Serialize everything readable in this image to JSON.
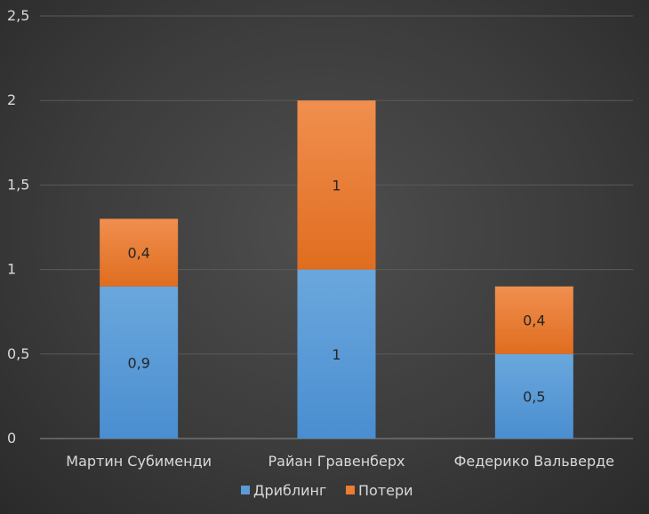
{
  "chart_data": {
    "type": "bar",
    "stacked": true,
    "categories": [
      "Мартин Субименди",
      "Райан Гравенберх",
      "Федерико Вальверде"
    ],
    "series": [
      {
        "name": "Дриблинг",
        "values": [
          0.9,
          1,
          0.5
        ],
        "labels": [
          "0,9",
          "1",
          "0,5"
        ],
        "color": "#5b9bd5"
      },
      {
        "name": "Потери",
        "values": [
          0.4,
          1,
          0.4
        ],
        "labels": [
          "0,4",
          "1",
          "0,4"
        ],
        "color": "#ed7d31"
      }
    ],
    "yticks": [
      {
        "value": 0,
        "label": "0"
      },
      {
        "value": 0.5,
        "label": "0,5"
      },
      {
        "value": 1,
        "label": "1"
      },
      {
        "value": 1.5,
        "label": "1,5"
      },
      {
        "value": 2,
        "label": "2"
      },
      {
        "value": 2.5,
        "label": "2,5"
      }
    ],
    "ylim": [
      0,
      2.5
    ],
    "grid": true,
    "legend_position": "bottom",
    "background": "#404040"
  }
}
